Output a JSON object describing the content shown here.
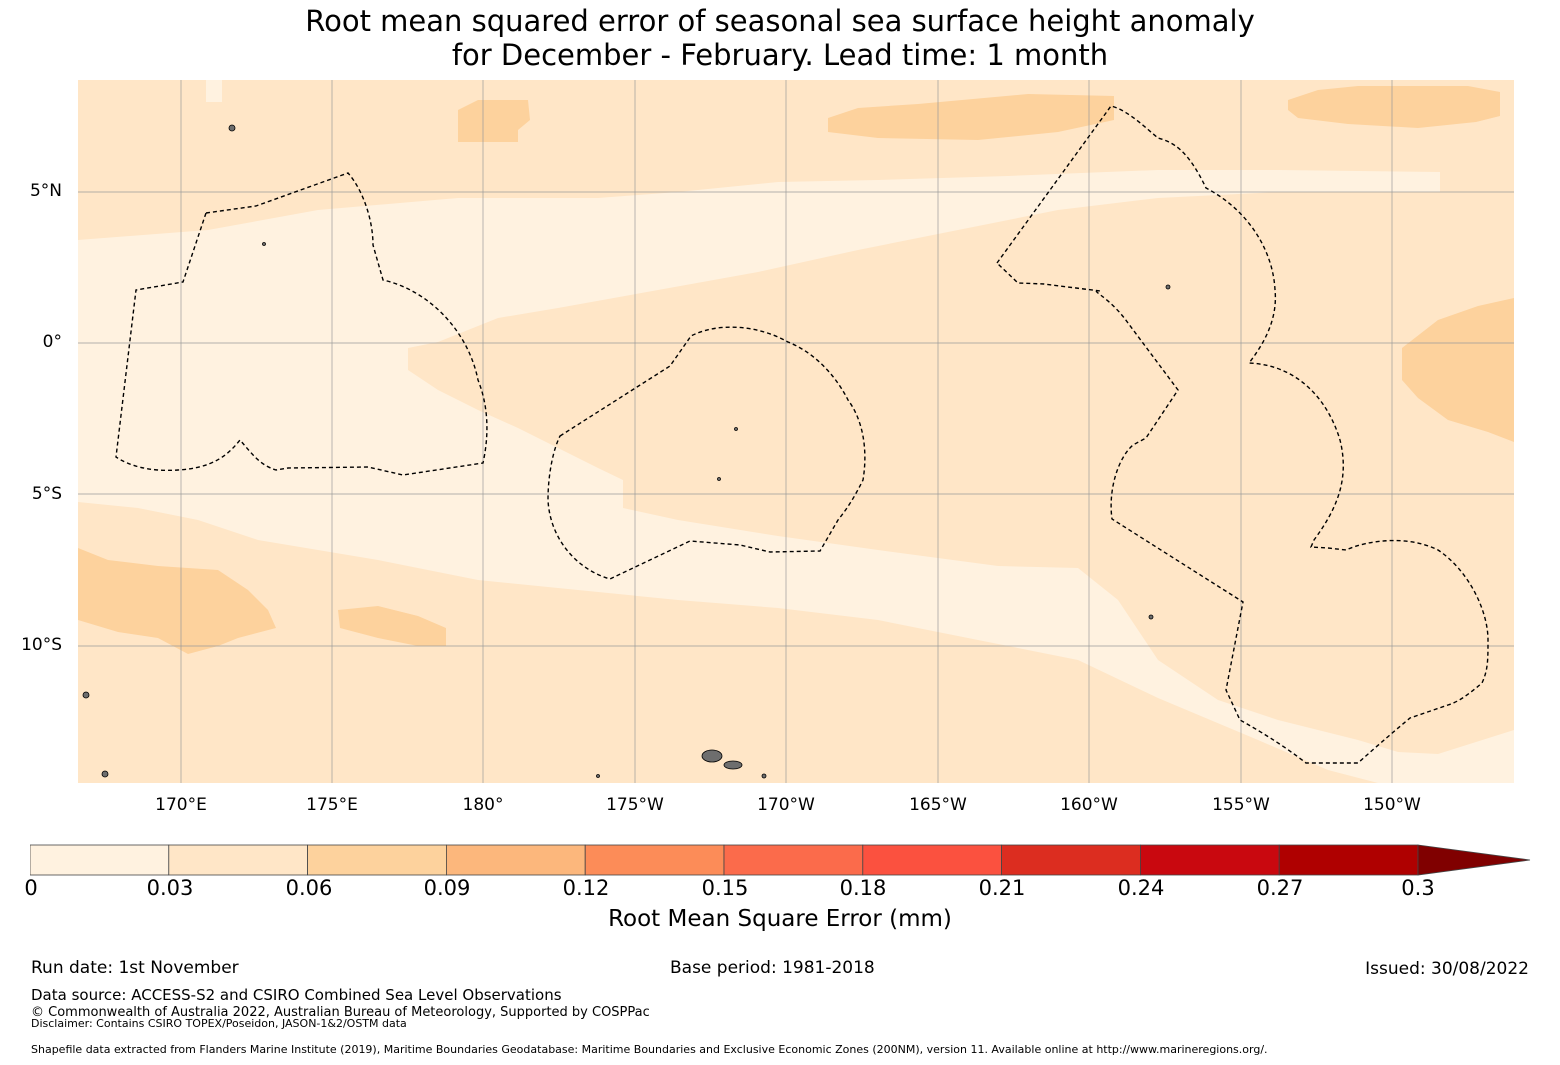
{
  "title": {
    "line1": "Root mean squared error of seasonal sea surface height anomaly",
    "line2": "for December - February. Lead time: 1 month"
  },
  "map": {
    "lat_labels": [
      "5°N",
      "0°",
      "5°S",
      "10°S"
    ],
    "lon_labels": [
      "170°E",
      "175°E",
      "180°",
      "175°W",
      "170°W",
      "165°W",
      "160°W",
      "155°W",
      "150°W"
    ],
    "colors": {
      "c0": "#fff2e0",
      "c1": "#ffe6c7",
      "c2": "#fdd29d",
      "land": "#6e6e6e",
      "boundary": "#000000"
    }
  },
  "colorbar": {
    "ticks": [
      "0",
      "0.03",
      "0.06",
      "0.09",
      "0.12",
      "0.15",
      "0.18",
      "0.21",
      "0.24",
      "0.27",
      "0.3"
    ],
    "colors": [
      "#fff2e0",
      "#ffe6c7",
      "#fdd29d",
      "#fcb77c",
      "#fc8c58",
      "#fb6b4b",
      "#fb513f",
      "#dc2d20",
      "#c9080f",
      "#af0000",
      "#800000"
    ],
    "label": "Root Mean Square Error (mm)"
  },
  "footer": {
    "run_date": "Run date: 1st November",
    "base_period": "Base period: 1981-2018",
    "issued": "Issued: 30/08/2022",
    "data_source": "Data source: ACCESS-S2 and CSIRO Combined Sea Level Observations",
    "copyright": "© Commonwealth of Australia 2022, Australian Bureau of Meteorology, Supported by COSPPac",
    "disclaimer": "Disclaimer: Contains CSIRO TOPEX/Poseidon, JASON-1&2/OSTM data",
    "shapefile": "Shapefile data extracted from Flanders Marine Institute (2019), Maritime Boundaries Geodatabase: Maritime Boundaries and Exclusive Economic Zones (200NM), version 11. Available online at http://www.marineregions.org/."
  }
}
